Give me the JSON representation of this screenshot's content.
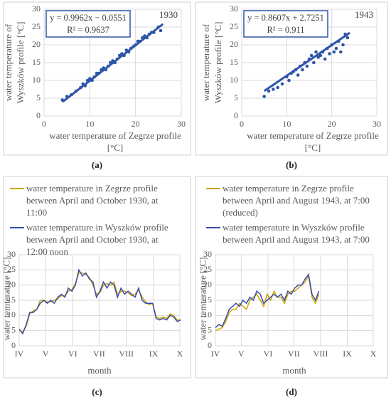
{
  "chart_data": [
    {
      "type": "scatter",
      "label": "(a)",
      "year": "1930",
      "equation": "y = 0.9962x − 0.0551",
      "r_squared": "R² = 0.9637",
      "x_label": "water temperature of Zegrze profile [°C]",
      "y_label": "water temperature of Wyszków profile [°C]",
      "color": "#2f55a8",
      "grid": true,
      "xlim": [
        0,
        30
      ],
      "ylim": [
        0,
        30
      ],
      "xticks": [
        0,
        10,
        20,
        30
      ],
      "yticks": [
        0,
        5,
        10,
        15,
        20,
        25,
        30
      ],
      "x": [
        4,
        5,
        6,
        7,
        8,
        8.5,
        9,
        9.5,
        10,
        10.5,
        11,
        11.5,
        12,
        12.5,
        13,
        13.5,
        14,
        14.5,
        15,
        15.5,
        16,
        16.5,
        17,
        17.5,
        18,
        18.5,
        19,
        19.5,
        20,
        20.5,
        21,
        21.5,
        22,
        22.5,
        23,
        23.5,
        24,
        25,
        25.5
      ],
      "y": [
        4.5,
        5.5,
        6,
        7,
        8,
        9,
        8.5,
        10,
        10.5,
        10,
        11,
        12,
        12,
        13,
        13.5,
        13,
        14,
        15,
        15.5,
        15,
        16,
        17,
        17.5,
        17,
        18.5,
        18,
        19,
        19.5,
        20,
        21,
        21,
        22,
        22.5,
        22,
        23,
        23.5,
        23.5,
        25,
        24
      ],
      "trendline": {
        "x": [
          4,
          26
        ],
        "y": [
          3.93,
          25.85
        ]
      }
    },
    {
      "type": "scatter",
      "label": "(b)",
      "year": "1943",
      "equation": "y = 0.8607x + 2.7251",
      "r_squared": "R² = 0.911",
      "x_label": "water temperature of Zegrze profile [°C]",
      "y_label": "water temperature of Wyszków profile [°C]",
      "color": "#2f55a8",
      "grid": true,
      "xlim": [
        0,
        30
      ],
      "ylim": [
        0,
        30
      ],
      "xticks": [
        0,
        10,
        20,
        30
      ],
      "yticks": [
        0,
        5,
        10,
        15,
        20,
        25,
        30
      ],
      "x": [
        5,
        6,
        7,
        8,
        9,
        10,
        10.5,
        11,
        11.5,
        12,
        12.5,
        13,
        13.5,
        14,
        14.5,
        15,
        15.5,
        16,
        16.5,
        17,
        17.5,
        18,
        18.5,
        19,
        19.5,
        20,
        20.5,
        21,
        21.5,
        22,
        22.5,
        23,
        23.5
      ],
      "y": [
        5.5,
        7,
        7.5,
        8,
        9,
        11,
        10,
        12,
        12.5,
        13,
        11.5,
        14,
        13,
        15,
        14,
        16,
        17,
        15,
        18,
        16.5,
        17,
        18,
        16,
        19,
        17.5,
        20,
        18,
        19,
        21,
        18,
        20,
        23,
        22
      ],
      "trendline": {
        "x": [
          5,
          24
        ],
        "y": [
          7.03,
          23.38
        ]
      }
    },
    {
      "type": "line",
      "label": "(c)",
      "x_label": "month",
      "y_label": "water temterature [°C]",
      "grid": true,
      "xlim": [
        0,
        183
      ],
      "ylim": [
        0,
        30
      ],
      "yticks": [
        0,
        5,
        10,
        15,
        20,
        25,
        30
      ],
      "xticks": [
        {
          "value": 0,
          "label": "IV"
        },
        {
          "value": 30,
          "label": "V"
        },
        {
          "value": 61,
          "label": "VI"
        },
        {
          "value": 91,
          "label": "VII"
        },
        {
          "value": 122,
          "label": "VIII"
        },
        {
          "value": 153,
          "label": "IX"
        },
        {
          "value": 183,
          "label": "X"
        }
      ],
      "x": [
        0,
        4,
        8,
        12,
        16,
        20,
        24,
        28,
        32,
        36,
        40,
        44,
        48,
        52,
        56,
        60,
        64,
        68,
        72,
        76,
        80,
        84,
        88,
        92,
        96,
        100,
        104,
        108,
        112,
        116,
        120,
        124,
        128,
        132,
        136,
        140,
        144,
        148,
        152,
        156,
        160,
        164,
        168,
        172,
        176,
        180,
        184
      ],
      "series": [
        {
          "name": "water temperature in Zegrze profile between April and October 1930, at 11:00",
          "color": "#c9a400",
          "values": [
            5,
            4.5,
            6.5,
            10.5,
            11.5,
            12,
            15,
            15,
            14.5,
            14.5,
            15,
            15.5,
            16.5,
            16.5,
            18,
            18.5,
            20.5,
            24,
            24,
            23.5,
            22.5,
            20,
            17,
            17.5,
            20,
            20.5,
            20,
            21,
            17,
            18,
            18,
            17.5,
            16.5,
            17,
            18.5,
            16,
            14.5,
            13.5,
            14,
            9.5,
            9,
            9.5,
            9,
            10.5,
            10,
            8.5,
            8.5
          ]
        },
        {
          "name": "water temperature in Wyszków profile between April and October 1930, at 12:00 noon",
          "color": "#3a4ca8",
          "values": [
            5.5,
            4,
            7,
            11,
            11,
            12,
            14,
            15,
            14,
            15,
            14,
            16,
            17,
            16,
            19,
            18,
            20,
            25,
            23,
            24,
            22,
            21,
            16,
            18,
            21,
            19,
            21,
            20,
            16,
            19,
            17,
            18,
            17,
            16,
            19,
            15,
            14,
            14,
            14,
            9,
            8.5,
            9,
            8.5,
            10,
            9.5,
            8,
            8.5
          ]
        }
      ]
    },
    {
      "type": "line",
      "label": "(d)",
      "x_label": "month",
      "y_label": "water temterature [°C]",
      "grid": true,
      "xlim": [
        0,
        183
      ],
      "ylim": [
        0,
        30
      ],
      "yticks": [
        0,
        5,
        10,
        15,
        20,
        25,
        30
      ],
      "xticks": [
        {
          "value": 0,
          "label": "IV"
        },
        {
          "value": 30,
          "label": "V"
        },
        {
          "value": 61,
          "label": "VI"
        },
        {
          "value": 91,
          "label": "VII"
        },
        {
          "value": 122,
          "label": "VIII"
        },
        {
          "value": 153,
          "label": "IX"
        },
        {
          "value": 183,
          "label": "X"
        }
      ],
      "x": [
        0,
        4,
        8,
        12,
        16,
        20,
        24,
        28,
        32,
        36,
        40,
        44,
        48,
        52,
        56,
        60,
        64,
        68,
        72,
        76,
        80,
        84,
        88,
        92,
        96,
        100,
        104,
        108,
        112,
        116,
        120
      ],
      "series": [
        {
          "name": "water temperature in Zegrze profile between April and August 1943, at 7:00 (reduced)",
          "color": "#c9a400",
          "values": [
            5,
            5.5,
            6,
            8,
            11,
            12,
            12,
            14,
            13,
            12,
            15,
            16,
            17,
            15,
            13,
            17,
            15,
            18,
            16,
            16,
            14,
            17,
            18,
            18,
            19,
            20,
            21,
            23,
            16,
            14,
            17
          ]
        },
        {
          "name": "water temperature in Wyszków profile between April and August 1943, at 7:00",
          "color": "#3a4ca8",
          "values": [
            6,
            7,
            6.5,
            9,
            12,
            13,
            14,
            13,
            15,
            14,
            16,
            15,
            18,
            17,
            14,
            15,
            16,
            17,
            16,
            17,
            15,
            18,
            17,
            19,
            20,
            20,
            22,
            23.5,
            17,
            15,
            18
          ]
        }
      ]
    }
  ]
}
